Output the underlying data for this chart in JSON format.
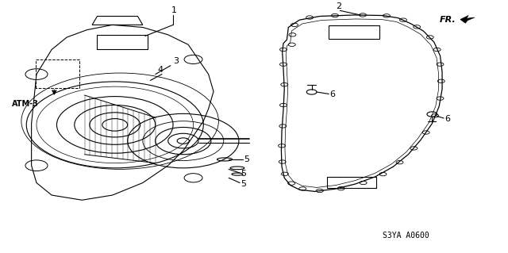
{
  "bg_color": "#ffffff",
  "line_color": "#000000",
  "fig_width": 6.4,
  "fig_height": 3.19,
  "dpi": 100,
  "fr_label": "FR.",
  "code_label": "S3YA A0600",
  "atm_label": "ATM-3"
}
